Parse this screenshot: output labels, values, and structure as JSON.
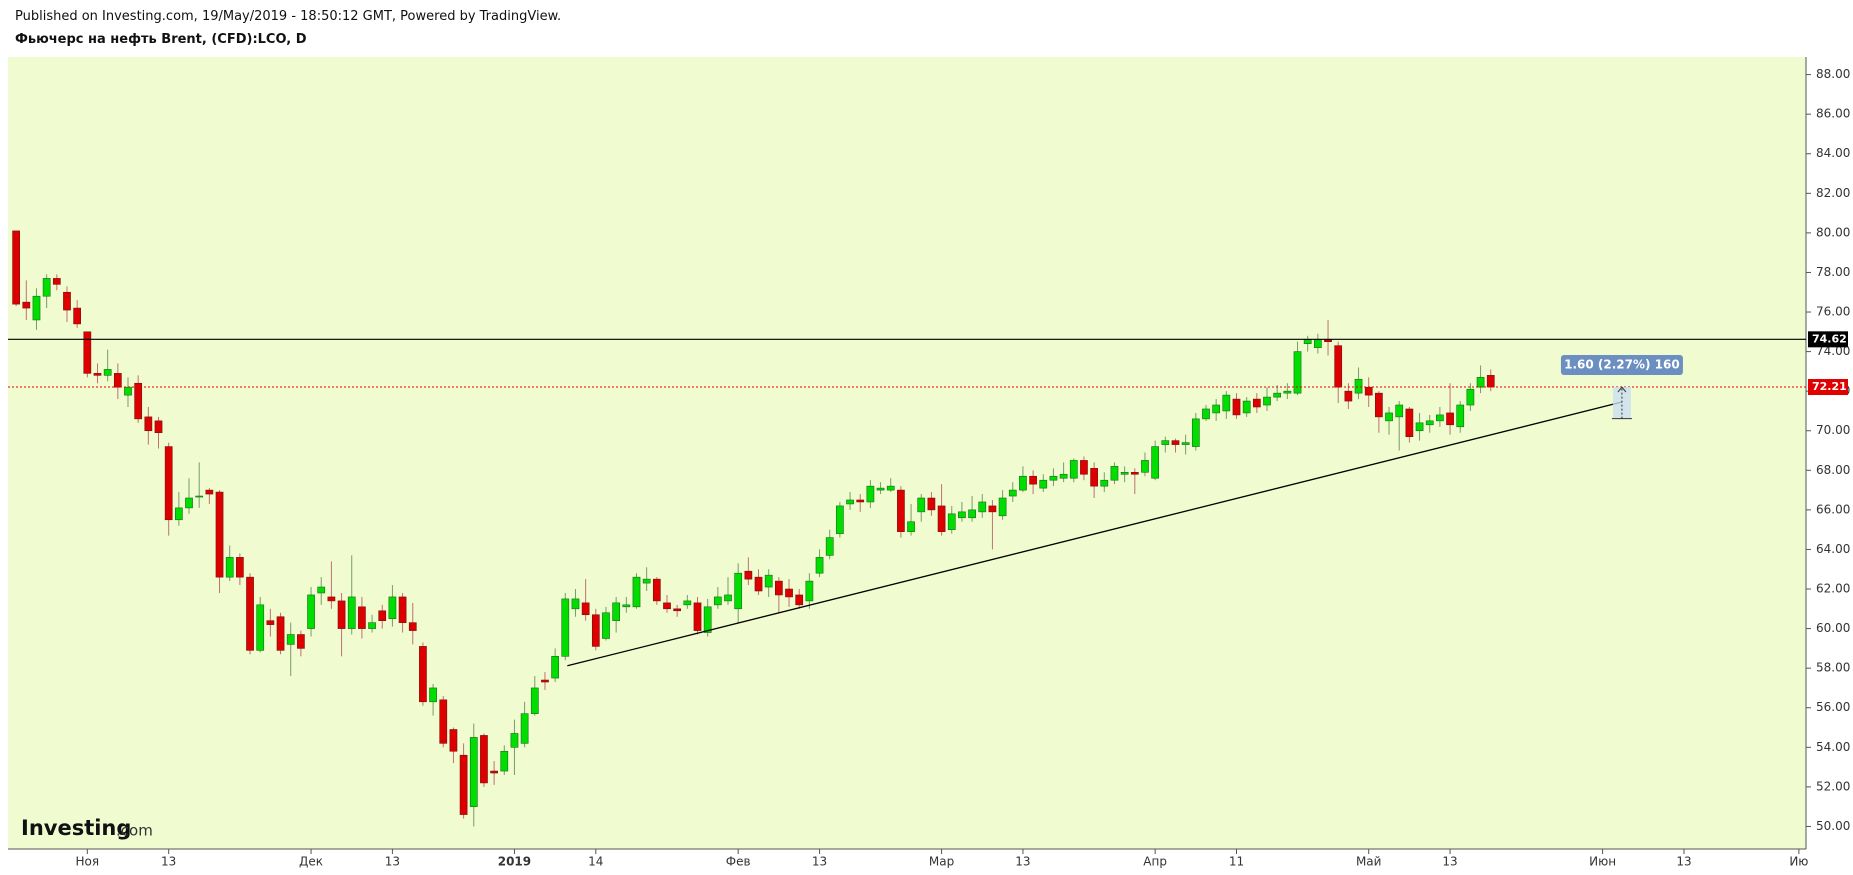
{
  "chart_data": {
    "type": "candlestick",
    "title": "Фьючерс на нефть Brent, (CFD):LCO, D",
    "subtitle": "Published on Investing.com, 19/May/2019 - 18:50:12 GMT, Powered by TradingView.",
    "logo": [
      "Investing",
      ".com"
    ],
    "up_color": "#00dd00",
    "down_color": "#dd0000",
    "x": [
      0,
      1,
      2,
      3,
      4,
      5,
      6,
      7,
      8,
      9,
      10,
      11,
      12,
      13,
      14,
      15,
      16,
      17,
      18,
      19,
      20,
      21,
      22,
      23,
      24,
      25,
      26,
      27,
      28,
      29,
      30,
      31,
      32,
      33,
      34,
      35,
      36,
      37,
      38,
      39,
      40,
      41,
      42,
      43,
      44,
      45,
      46,
      47,
      48,
      49,
      50,
      51,
      52,
      53,
      54,
      55,
      56,
      57,
      58,
      59,
      60,
      61,
      62,
      63,
      64,
      65,
      66,
      67,
      68,
      69,
      70,
      71,
      72,
      73,
      74,
      75,
      76,
      77,
      78,
      79,
      80,
      81,
      82,
      83,
      84,
      85,
      86,
      87,
      88,
      89,
      90,
      91,
      92,
      93,
      94,
      95,
      96,
      97,
      98,
      99,
      100,
      101,
      102,
      103,
      104,
      105,
      106,
      107,
      108,
      109,
      110,
      111,
      112,
      113,
      114,
      115,
      116,
      117,
      118,
      119,
      120,
      121,
      122,
      123,
      124,
      125,
      126,
      127,
      128,
      129,
      130,
      131,
      132,
      133,
      134,
      135,
      136,
      137,
      138,
      139,
      140,
      141,
      142,
      143,
      144,
      145
    ],
    "open": [
      80.1,
      76.5,
      75.6,
      76.8,
      77.7,
      77.0,
      76.2,
      75.0,
      72.9,
      72.8,
      72.9,
      71.8,
      72.4,
      70.7,
      70.5,
      69.2,
      65.5,
      66.1,
      66.7,
      67.0,
      66.9,
      62.6,
      63.6,
      62.6,
      58.9,
      60.4,
      60.6,
      59.2,
      59.7,
      60.0,
      61.8,
      61.6,
      61.4,
      60.0,
      61.1,
      60.0,
      60.9,
      60.5,
      61.6,
      60.3,
      59.1,
      56.3,
      56.4,
      54.9,
      53.6,
      51.0,
      54.6,
      52.8,
      52.8,
      54.0,
      54.2,
      55.7,
      57.4,
      57.5,
      58.6,
      61.0,
      61.3,
      60.7,
      59.5,
      60.4,
      61.1,
      61.1,
      62.3,
      62.5,
      61.3,
      61.0,
      61.2,
      61.3,
      59.8,
      61.2,
      61.4,
      61.0,
      62.9,
      62.6,
      62.1,
      62.4,
      62.0,
      61.7,
      61.4,
      62.8,
      63.7,
      64.8,
      66.3,
      66.5,
      66.4,
      67.0,
      67.0,
      67.0,
      64.9,
      65.9,
      66.6,
      66.2,
      65.0,
      65.6,
      65.6,
      65.9,
      66.2,
      65.7,
      66.7,
      67.0,
      67.7,
      67.1,
      67.5,
      67.6,
      67.6,
      68.5,
      68.1,
      67.2,
      67.5,
      67.8,
      67.9,
      67.9,
      67.6,
      69.3,
      69.5,
      69.3,
      69.2,
      70.6,
      70.9,
      71.0,
      71.6,
      70.9,
      71.6,
      71.3,
      71.7,
      71.9,
      71.9,
      74.4,
      74.2,
      74.6,
      74.3,
      72.0,
      71.9,
      72.2,
      71.9,
      70.5,
      70.7,
      71.1,
      70.0,
      70.3,
      70.5,
      70.9,
      70.2,
      71.3,
      72.2,
      72.8
    ],
    "high": [
      80.1,
      77.6,
      77.2,
      77.9,
      77.9,
      77.3,
      76.6,
      75.0,
      73.4,
      74.1,
      73.4,
      72.7,
      72.8,
      71.2,
      70.7,
      69.4,
      66.9,
      67.6,
      68.4,
      67.1,
      67.0,
      64.2,
      63.8,
      62.8,
      61.6,
      61.0,
      60.8,
      60.3,
      59.9,
      62.1,
      62.6,
      63.4,
      61.8,
      63.7,
      61.6,
      60.7,
      61.2,
      62.2,
      61.8,
      61.3,
      59.3,
      57.2,
      56.6,
      55.0,
      54.2,
      55.2,
      54.7,
      53.3,
      54.1,
      55.4,
      56.3,
      57.6,
      57.8,
      59.0,
      61.8,
      62.0,
      62.5,
      61.0,
      61.1,
      61.6,
      61.6,
      62.8,
      63.1,
      62.6,
      61.7,
      61.2,
      61.7,
      61.6,
      61.5,
      62.1,
      62.6,
      63.3,
      63.6,
      63.0,
      63.0,
      62.6,
      62.5,
      62.0,
      62.8,
      64.0,
      65.0,
      66.4,
      66.9,
      66.8,
      67.5,
      67.4,
      67.6,
      67.2,
      66.3,
      66.8,
      66.9,
      67.3,
      66.2,
      66.4,
      66.7,
      66.8,
      66.5,
      67.0,
      67.4,
      68.2,
      68.0,
      67.8,
      68.1,
      68.4,
      68.6,
      68.7,
      68.4,
      67.9,
      68.4,
      68.2,
      68.1,
      68.9,
      69.5,
      69.7,
      69.6,
      69.8,
      70.9,
      71.3,
      71.6,
      72.0,
      71.9,
      71.7,
      71.9,
      72.2,
      72.3,
      72.4,
      74.5,
      74.8,
      74.9,
      75.6,
      74.5,
      72.4,
      73.2,
      72.7,
      72.0,
      71.2,
      71.5,
      71.2,
      70.9,
      70.8,
      71.2,
      72.4,
      71.5,
      72.4,
      73.3,
      73.1
    ],
    "low": [
      76.3,
      75.6,
      75.1,
      76.2,
      77.1,
      75.5,
      75.2,
      72.7,
      72.4,
      72.5,
      71.6,
      71.2,
      70.4,
      69.3,
      69.1,
      64.7,
      65.2,
      65.8,
      66.1,
      66.3,
      61.8,
      62.4,
      62.2,
      58.7,
      58.8,
      59.6,
      58.7,
      57.6,
      58.6,
      59.6,
      61.2,
      61.0,
      58.6,
      59.7,
      59.5,
      59.8,
      60.0,
      60.1,
      59.8,
      59.2,
      56.1,
      55.6,
      54.0,
      53.2,
      50.4,
      50.0,
      52.0,
      52.1,
      52.6,
      52.6,
      54.0,
      55.6,
      56.9,
      57.3,
      58.4,
      60.6,
      60.4,
      58.9,
      59.4,
      59.8,
      60.8,
      61.0,
      61.9,
      61.2,
      60.8,
      60.6,
      61.0,
      59.7,
      59.6,
      61.0,
      61.2,
      60.3,
      62.2,
      61.7,
      61.6,
      60.8,
      61.1,
      61.0,
      61.0,
      62.6,
      63.5,
      64.6,
      66.0,
      65.9,
      66.1,
      66.8,
      66.9,
      64.6,
      64.7,
      65.4,
      65.7,
      64.7,
      64.8,
      65.4,
      65.4,
      65.6,
      64.0,
      65.5,
      66.4,
      66.9,
      66.8,
      66.9,
      67.2,
      67.4,
      67.4,
      67.5,
      66.6,
      66.9,
      67.3,
      67.4,
      66.8,
      67.7,
      67.5,
      68.9,
      68.9,
      68.8,
      69.0,
      70.5,
      70.5,
      70.6,
      70.6,
      70.7,
      70.9,
      71.0,
      71.5,
      71.6,
      71.8,
      74.0,
      73.9,
      73.8,
      71.4,
      71.1,
      71.6,
      71.2,
      69.9,
      69.8,
      69.0,
      69.4,
      69.5,
      69.9,
      70.2,
      69.8,
      69.9,
      71.0,
      71.9,
      72.0
    ],
    "close": [
      76.4,
      76.2,
      76.8,
      77.7,
      77.4,
      76.1,
      75.4,
      72.9,
      72.8,
      73.1,
      72.2,
      72.2,
      70.6,
      70.0,
      69.9,
      65.5,
      66.1,
      66.6,
      66.7,
      66.8,
      62.6,
      63.6,
      62.6,
      58.9,
      61.2,
      60.2,
      58.9,
      59.7,
      59.0,
      61.7,
      62.1,
      61.4,
      60.0,
      61.6,
      60.0,
      60.3,
      60.4,
      61.6,
      60.3,
      59.9,
      56.3,
      57.0,
      54.2,
      53.8,
      50.6,
      54.5,
      52.2,
      52.7,
      53.8,
      54.7,
      55.7,
      57.0,
      57.3,
      58.6,
      61.5,
      61.5,
      60.7,
      59.1,
      60.8,
      61.3,
      61.2,
      62.6,
      62.5,
      61.4,
      61.0,
      60.9,
      61.4,
      59.9,
      61.1,
      61.6,
      61.7,
      62.8,
      62.5,
      61.9,
      62.7,
      61.7,
      61.6,
      61.2,
      62.4,
      63.6,
      64.6,
      66.2,
      66.5,
      66.4,
      67.2,
      67.1,
      67.2,
      64.9,
      65.4,
      66.6,
      66.0,
      64.9,
      65.8,
      65.9,
      66.0,
      66.4,
      65.9,
      66.6,
      67.0,
      67.7,
      67.3,
      67.5,
      67.7,
      67.8,
      68.5,
      67.8,
      67.2,
      67.5,
      68.2,
      67.9,
      67.8,
      68.5,
      69.2,
      69.5,
      69.3,
      69.4,
      70.6,
      71.1,
      71.3,
      71.8,
      70.8,
      71.5,
      71.2,
      71.7,
      71.9,
      72.0,
      74.0,
      74.6,
      74.6,
      74.5,
      72.2,
      71.5,
      72.6,
      71.8,
      70.7,
      70.9,
      71.3,
      69.7,
      70.4,
      70.5,
      70.8,
      70.3,
      71.3,
      72.1,
      72.7,
      72.21
    ],
    "xlim": [
      -0.8,
      176
    ],
    "xticks": [
      {
        "value": 7,
        "label": "Ноя"
      },
      {
        "value": 15,
        "label": "13"
      },
      {
        "value": 29,
        "label": "Дек"
      },
      {
        "value": 37,
        "label": "13"
      },
      {
        "value": 49,
        "label": "2019"
      },
      {
        "value": 57,
        "label": "14"
      },
      {
        "value": 71,
        "label": "Фев"
      },
      {
        "value": 79,
        "label": "13"
      },
      {
        "value": 91,
        "label": "Мар"
      },
      {
        "value": 99,
        "label": "13"
      },
      {
        "value": 112,
        "label": "Апр"
      },
      {
        "value": 120,
        "label": "11"
      },
      {
        "value": 133,
        "label": "Май"
      },
      {
        "value": 141,
        "label": "13"
      },
      {
        "value": 156,
        "label": "Июн"
      },
      {
        "value": 164,
        "label": "13"
      },
      {
        "value": 175.3,
        "label": "Ию"
      }
    ],
    "ylim": [
      48.86,
      88.89
    ],
    "yticks": [
      {
        "value": 50,
        "label": "50.00"
      },
      {
        "value": 52,
        "label": "52.00"
      },
      {
        "value": 54,
        "label": "54.00"
      },
      {
        "value": 56,
        "label": "56.00"
      },
      {
        "value": 58,
        "label": "58.00"
      },
      {
        "value": 60,
        "label": "60.00"
      },
      {
        "value": 62,
        "label": "62.00"
      },
      {
        "value": 64,
        "label": "64.00"
      },
      {
        "value": 66,
        "label": "66.00"
      },
      {
        "value": 68,
        "label": "68.00"
      },
      {
        "value": 70,
        "label": "70.00"
      },
      {
        "value": 72,
        "label": "72.00"
      },
      {
        "value": 74,
        "label": "74.00"
      },
      {
        "value": 76,
        "label": "76.00"
      },
      {
        "value": 78,
        "label": "78.00"
      },
      {
        "value": 80,
        "label": "80.00"
      },
      {
        "value": 82,
        "label": "82.00"
      },
      {
        "value": 84,
        "label": "84.00"
      },
      {
        "value": 86,
        "label": "86.00"
      },
      {
        "value": 88,
        "label": "88.00"
      }
    ],
    "horizontal_line": 74.62,
    "last_price": 72.21,
    "trend_line": {
      "x": [
        54.2,
        157.9
      ],
      "y": [
        58.12,
        71.45
      ]
    },
    "measure": {
      "x": 157.9,
      "from": 70.61,
      "to": 72.21,
      "label": "1.60 (2.27%) 160",
      "color": "#6a8fc0"
    }
  }
}
